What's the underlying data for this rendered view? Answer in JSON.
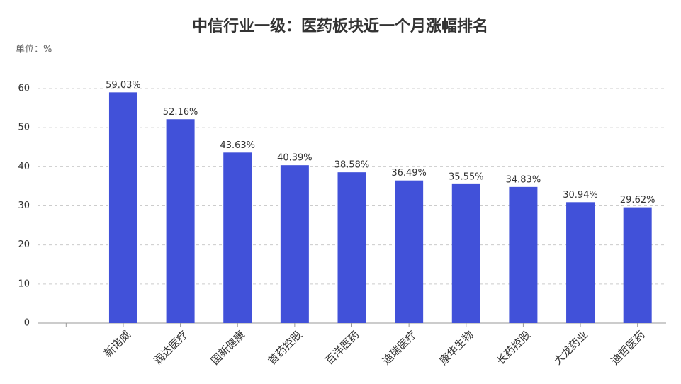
{
  "chart_data": {
    "type": "bar",
    "title": "中信行业一级：医药板块近一个月涨幅排名",
    "unit_label": "单位：%",
    "categories": [
      null,
      "新诺威",
      "润达医疗",
      "国新健康",
      "首药控股",
      "百洋医药",
      "迪瑞医疗",
      "康华生物",
      "长药控股",
      "大龙药业",
      "迪哲医药"
    ],
    "values": [
      null,
      59.03,
      52.16,
      43.63,
      40.39,
      38.58,
      36.49,
      35.55,
      34.83,
      30.94,
      29.62
    ],
    "value_labels": [
      null,
      "59.03%",
      "52.16%",
      "43.63%",
      "40.39%",
      "38.58%",
      "36.49%",
      "35.55%",
      "34.83%",
      "30.94%",
      "29.62%"
    ],
    "color": "#4151d9",
    "ylim": [
      0,
      60
    ],
    "yticks": [
      0,
      10,
      20,
      30,
      40,
      50,
      60
    ],
    "grid": true
  }
}
